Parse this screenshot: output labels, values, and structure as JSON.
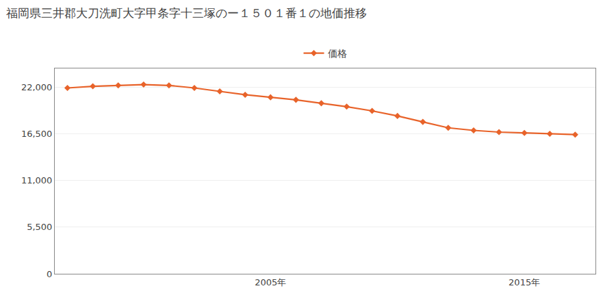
{
  "chart_data": {
    "type": "line",
    "title": "福岡県三井郡大刀洗町大字甲条字十三塚のー１５０１番１の地価推移",
    "x": [
      1997,
      1998,
      1999,
      2000,
      2001,
      2002,
      2003,
      2004,
      2005,
      2006,
      2007,
      2008,
      2009,
      2010,
      2011,
      2012,
      2013,
      2014,
      2015,
      2016,
      2017
    ],
    "series": [
      {
        "name": "価格",
        "color": "#E8632A",
        "marker": "diamond",
        "values": [
          21900,
          22100,
          22200,
          22300,
          22200,
          21900,
          21500,
          21100,
          20800,
          20500,
          20100,
          19700,
          19200,
          18600,
          17900,
          17200,
          16900,
          16700,
          16600,
          16500,
          16400
        ]
      }
    ],
    "xlim": [
      1996.5,
      2017.8
    ],
    "xticks": [
      {
        "value": 2005,
        "label": "2005年"
      },
      {
        "value": 2015,
        "label": "2015年"
      }
    ],
    "ylim": [
      0,
      24200
    ],
    "yticks": [
      0,
      {
        "value": 5500,
        "label": "5,500"
      },
      {
        "value": 11000,
        "label": "11,000"
      },
      {
        "value": 16500,
        "label": "16,500"
      },
      {
        "value": 22000,
        "label": "22,000"
      }
    ],
    "grid": "y",
    "legend": "upper center"
  }
}
